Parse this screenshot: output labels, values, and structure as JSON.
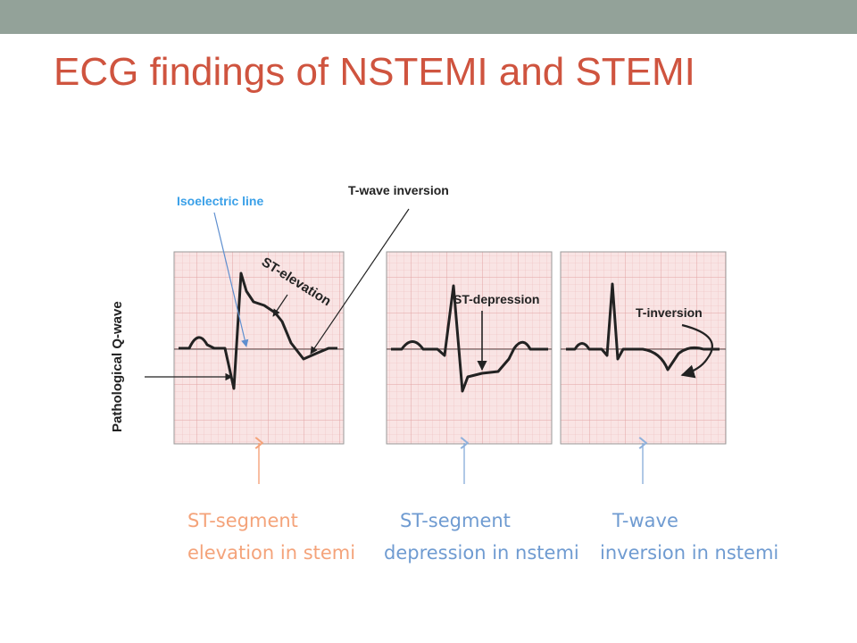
{
  "slide": {
    "title": "ECG findings of NSTEMI and STEMI",
    "accent_bar_color": "#93a299",
    "title_color": "#cf543f"
  },
  "diagram": {
    "annotations": {
      "pathological_q_wave": "Pathological Q-wave",
      "isoelectric_line": "Isoelectric line",
      "t_wave_inversion": "T-wave inversion",
      "st_elevation": "ST-elevation",
      "st_depression": "ST-depression",
      "t_inversion": "T-inversion"
    },
    "captions": [
      {
        "line1": "ST-segment",
        "line2": "elevation in stemi",
        "color": "#f4a37a"
      },
      {
        "line1": "ST-segment",
        "line2": "depression in nstemi",
        "color": "#6f9bd1"
      },
      {
        "line1": "T-wave",
        "line2": "inversion in nstemi",
        "color": "#6f9bd1"
      }
    ],
    "colors": {
      "grid_background": "#f7dede",
      "grid_line": "#ecb3b3",
      "isoelectric_label": "#3aa0e8",
      "stemi_arrow": "#f4a37a",
      "nstemi_arrow": "#8fb1dc"
    }
  }
}
